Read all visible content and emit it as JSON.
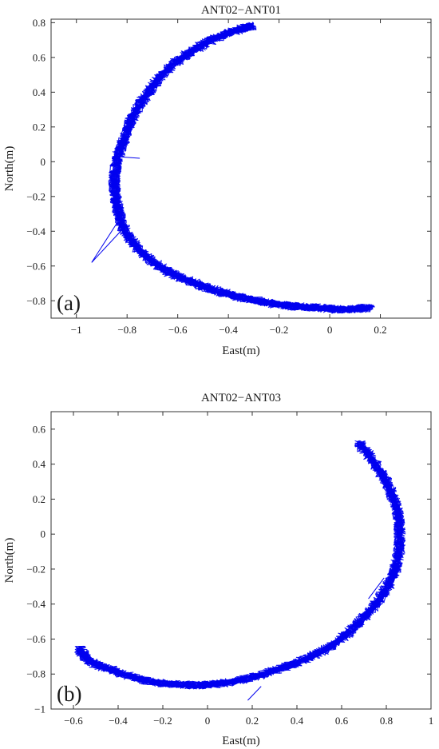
{
  "chart_data": [
    {
      "type": "line",
      "panel_label": "(a)",
      "title": "ANT02−ANT01",
      "xlabel": "East(m)",
      "ylabel": "North(m)",
      "xlim": [
        -1.1,
        0.4
      ],
      "ylim": [
        -0.9,
        0.82
      ],
      "xticks": [
        -1,
        -0.8,
        -0.6,
        -0.4,
        -0.2,
        0,
        0.2
      ],
      "xtick_labels": [
        "−1",
        "−0.8",
        "−0.6",
        "−0.4",
        "−0.2",
        "0",
        "0.2"
      ],
      "yticks": [
        -0.8,
        -0.6,
        -0.4,
        -0.2,
        0,
        0.2,
        0.4,
        0.6,
        0.8
      ],
      "ytick_labels": [
        "−0.8",
        "−0.6",
        "−0.4",
        "−0.2",
        "0",
        "0.2",
        "0.4",
        "0.6",
        "0.8"
      ],
      "series": [
        {
          "color": "#0000ee",
          "x": [
            -0.31,
            -0.36,
            -0.45,
            -0.55,
            -0.64,
            -0.71,
            -0.77,
            -0.81,
            -0.84,
            -0.85,
            -0.84,
            -0.82,
            -0.78,
            -0.72,
            -0.64,
            -0.55,
            -0.45,
            -0.35,
            -0.25,
            -0.15,
            -0.05,
            0.05,
            0.16
          ],
          "y": [
            0.78,
            0.76,
            0.71,
            0.63,
            0.53,
            0.41,
            0.28,
            0.14,
            0.01,
            -0.12,
            -0.24,
            -0.36,
            -0.46,
            -0.55,
            -0.63,
            -0.69,
            -0.74,
            -0.78,
            -0.81,
            -0.83,
            -0.84,
            -0.85,
            -0.84
          ]
        }
      ],
      "outliers": [
        {
          "x": [
            -0.83,
            -0.94,
            -0.8
          ],
          "y": [
            -0.33,
            -0.58,
            -0.36
          ]
        },
        {
          "x": [
            -0.85,
            -0.75
          ],
          "y": [
            0.03,
            0.02
          ]
        }
      ]
    },
    {
      "type": "line",
      "panel_label": "(b)",
      "title": "ANT02−ANT03",
      "xlabel": "East(m)",
      "ylabel": "North(m)",
      "xlim": [
        -0.7,
        1.0
      ],
      "ylim": [
        -1.0,
        0.7
      ],
      "xticks": [
        -0.6,
        -0.4,
        -0.2,
        0,
        0.2,
        0.4,
        0.6,
        0.8,
        1
      ],
      "xtick_labels": [
        "−0.6",
        "−0.4",
        "−0.2",
        "0",
        "0.2",
        "0.4",
        "0.6",
        "0.8",
        "1"
      ],
      "yticks": [
        -1,
        -0.8,
        -0.6,
        -0.4,
        -0.2,
        0,
        0.2,
        0.4,
        0.6
      ],
      "ytick_labels": [
        "−1",
        "−0.8",
        "−0.6",
        "−0.4",
        "−0.2",
        "0",
        "0.2",
        "0.4",
        "0.6"
      ],
      "series": [
        {
          "color": "#0000ee",
          "x": [
            0.68,
            0.75,
            0.81,
            0.85,
            0.86,
            0.85,
            0.81,
            0.74,
            0.65,
            0.55,
            0.43,
            0.3,
            0.16,
            0.02,
            -0.12,
            -0.26,
            -0.4,
            -0.52,
            -0.57
          ],
          "y": [
            0.52,
            0.4,
            0.27,
            0.13,
            -0.01,
            -0.15,
            -0.29,
            -0.42,
            -0.54,
            -0.64,
            -0.72,
            -0.78,
            -0.83,
            -0.86,
            -0.86,
            -0.84,
            -0.79,
            -0.73,
            -0.66
          ]
        }
      ],
      "outliers": [
        {
          "x": [
            0.24,
            0.18
          ],
          "y": [
            -0.87,
            -0.95
          ]
        },
        {
          "x": [
            0.79,
            0.72
          ],
          "y": [
            -0.25,
            -0.37
          ]
        }
      ]
    }
  ]
}
